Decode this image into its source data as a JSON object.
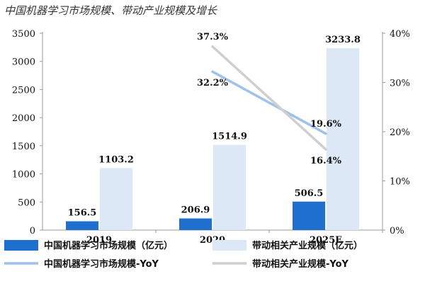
{
  "title": "中国机器学习市场规模、带动产业规模及增长",
  "chart_data": {
    "type": "bar",
    "categories": [
      "2019",
      "2020",
      "2025E"
    ],
    "y_left_lim": [
      0,
      3500
    ],
    "y_left_ticks": [
      0,
      500,
      1000,
      1500,
      2000,
      2500,
      3000,
      3500
    ],
    "y_right_lim": [
      0,
      40
    ],
    "y_right_ticks": [
      0,
      10,
      20,
      30,
      40
    ],
    "y_right_tick_labels": [
      "0%",
      "10%",
      "20%",
      "30%",
      "40%"
    ],
    "series": [
      {
        "name": "中国机器学习市场规模（亿元）",
        "type": "bar",
        "axis": "left",
        "color": "#1f6fcf",
        "values": [
          156.5,
          206.9,
          506.5
        ],
        "labels": [
          "156.5",
          "206.9",
          "506.5"
        ]
      },
      {
        "name": "带动相关产业规模（亿元）",
        "type": "bar",
        "axis": "left",
        "color": "#dce8f6",
        "values": [
          1103.2,
          1514.9,
          3233.8
        ],
        "labels": [
          "1103.2",
          "1514.9",
          "3233.8"
        ]
      },
      {
        "name": "中国机器学习市场规模-YoY",
        "type": "line",
        "axis": "right",
        "color": "#9ec2ea",
        "points": [
          {
            "category": "2020",
            "value": 32.2
          },
          {
            "category": "2025E",
            "value": 19.6
          }
        ],
        "labels": [
          "32.2%",
          "19.6%"
        ]
      },
      {
        "name": "带动相关产业规模-YoY",
        "type": "line",
        "axis": "right",
        "color": "#cfcfcf",
        "points": [
          {
            "category": "2020",
            "value": 37.3
          },
          {
            "category": "2025E",
            "value": 16.4
          }
        ],
        "labels": [
          "37.3%",
          "16.4%"
        ]
      }
    ],
    "legend_position": "bottom",
    "grid": false
  }
}
